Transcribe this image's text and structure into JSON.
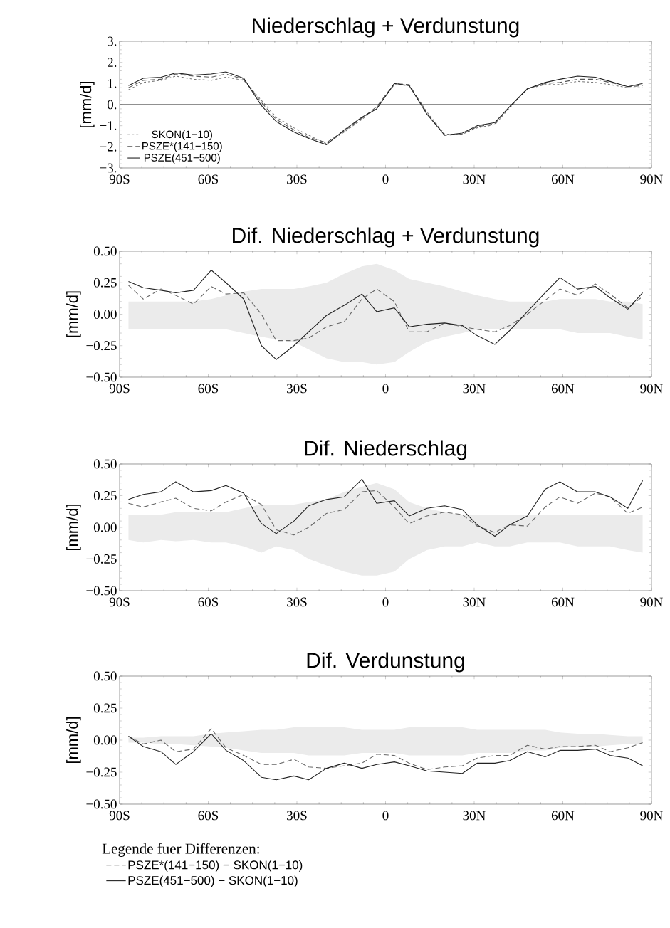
{
  "chart_data": [
    {
      "type": "line",
      "title": "Niederschlag + Verdunstung",
      "ylabel": "[mm/d]",
      "legend": "bottom left",
      "x": [
        -87,
        -82,
        -76,
        -71,
        -65,
        -59,
        -54,
        -48,
        -42,
        -37,
        -31,
        -26,
        -20,
        -14,
        -8,
        -3,
        3,
        8,
        14,
        20,
        26,
        31,
        37,
        42,
        48,
        54,
        59,
        65,
        71,
        76,
        82,
        87
      ],
      "xlim": [
        -90,
        90
      ],
      "xticks": [
        {
          "value": -90,
          "label": "90S"
        },
        {
          "value": -60,
          "label": "60S"
        },
        {
          "value": -30,
          "label": "30S"
        },
        {
          "value": 0,
          "label": "0"
        },
        {
          "value": 30,
          "label": "30N"
        },
        {
          "value": 60,
          "label": "60N"
        },
        {
          "value": 90,
          "label": "90N"
        }
      ],
      "ylim": [
        -3,
        3
      ],
      "yticks": [
        {
          "value": -3,
          "label": "−3."
        },
        {
          "value": -2,
          "label": "−2."
        },
        {
          "value": -1,
          "label": "−1."
        },
        {
          "value": 0,
          "label": "0."
        },
        {
          "value": 1,
          "label": "1."
        },
        {
          "value": 2,
          "label": "2."
        },
        {
          "value": 3,
          "label": "3."
        }
      ],
      "ref_lines": [
        {
          "axis": "y",
          "value": 0,
          "color": "#222222"
        }
      ],
      "series": [
        {
          "name": "SKON(1−10)",
          "color": "#777777",
          "line_style": "dotted",
          "values": [
            0.7,
            1.05,
            1.15,
            1.35,
            1.2,
            1.15,
            1.3,
            1.15,
            0.2,
            -0.6,
            -1.1,
            -1.45,
            -1.85,
            -1.3,
            -0.7,
            -0.15,
            0.95,
            0.9,
            -0.35,
            -1.4,
            -1.4,
            -1.1,
            -0.95,
            -0.15,
            0.75,
            0.95,
            0.95,
            1.1,
            1.05,
            0.95,
            0.8,
            0.8
          ]
        },
        {
          "name": "PSZE*(141−150)",
          "color": "#555555",
          "line_style": "dashed",
          "values": [
            0.8,
            1.15,
            1.2,
            1.45,
            1.35,
            1.3,
            1.45,
            1.2,
            0.1,
            -0.7,
            -1.2,
            -1.55,
            -1.8,
            -1.25,
            -0.65,
            -0.1,
            1.0,
            0.95,
            -0.4,
            -1.45,
            -1.4,
            -1.05,
            -0.9,
            -0.1,
            0.75,
            1.0,
            1.05,
            1.2,
            1.2,
            1.05,
            0.85,
            0.9
          ]
        },
        {
          "name": "PSZE(451−500)",
          "color": "#222222",
          "line_style": "solid",
          "values": [
            0.9,
            1.25,
            1.3,
            1.5,
            1.4,
            1.45,
            1.55,
            1.25,
            -0.05,
            -0.8,
            -1.3,
            -1.6,
            -1.9,
            -1.2,
            -0.6,
            -0.2,
            1.0,
            0.9,
            -0.45,
            -1.45,
            -1.35,
            -1.0,
            -0.85,
            -0.1,
            0.75,
            1.05,
            1.2,
            1.35,
            1.3,
            1.1,
            0.85,
            1.0
          ]
        }
      ]
    },
    {
      "type": "line",
      "title": "Dif. Niederschlag + Verdunstung",
      "ylabel": "[mm/d]",
      "x": [
        -87,
        -82,
        -76,
        -71,
        -65,
        -59,
        -54,
        -48,
        -42,
        -37,
        -31,
        -26,
        -20,
        -14,
        -8,
        -3,
        3,
        8,
        14,
        20,
        26,
        31,
        37,
        42,
        48,
        54,
        59,
        65,
        71,
        76,
        82,
        87
      ],
      "xlim": [
        -90,
        90
      ],
      "xticks": [
        {
          "value": -90,
          "label": "90S"
        },
        {
          "value": -60,
          "label": "60S"
        },
        {
          "value": -30,
          "label": "30S"
        },
        {
          "value": 0,
          "label": "0"
        },
        {
          "value": 30,
          "label": "30N"
        },
        {
          "value": 60,
          "label": "60N"
        },
        {
          "value": 90,
          "label": "90N"
        }
      ],
      "ylim": [
        -0.5,
        0.5
      ],
      "yticks": [
        {
          "value": -0.5,
          "label": "−0.50"
        },
        {
          "value": -0.25,
          "label": "−0.25"
        },
        {
          "value": 0,
          "label": "0.00"
        },
        {
          "value": 0.25,
          "label": "0.25"
        },
        {
          "value": 0.5,
          "label": "0.50"
        }
      ],
      "series": [
        {
          "type": "area",
          "color": "#ebebeb",
          "values": [
            null,
            null,
            null,
            null,
            null,
            null,
            null,
            null,
            null,
            null,
            null,
            null,
            null,
            null,
            null,
            null,
            null,
            null,
            null,
            null,
            null,
            null,
            null,
            null,
            null,
            null,
            null,
            null,
            null,
            null,
            null,
            null
          ],
          "upper": [
            0.1,
            0.1,
            0.1,
            0.1,
            0.1,
            0.12,
            0.15,
            0.18,
            0.2,
            0.2,
            0.2,
            0.22,
            0.25,
            0.32,
            0.38,
            0.4,
            0.35,
            0.28,
            0.25,
            0.22,
            0.18,
            0.15,
            0.12,
            0.1,
            0.1,
            0.1,
            0.12,
            0.12,
            0.12,
            0.1,
            0.1,
            0.08
          ],
          "lower": [
            -0.12,
            -0.12,
            -0.12,
            -0.12,
            -0.12,
            -0.12,
            -0.12,
            -0.15,
            -0.18,
            -0.2,
            -0.22,
            -0.28,
            -0.35,
            -0.38,
            -0.38,
            -0.4,
            -0.38,
            -0.3,
            -0.22,
            -0.18,
            -0.15,
            -0.12,
            -0.12,
            -0.12,
            -0.12,
            -0.12,
            -0.12,
            -0.15,
            -0.15,
            -0.15,
            -0.18,
            -0.2
          ]
        },
        {
          "color": "#666666",
          "line_style": "dashed",
          "values": [
            0.23,
            0.12,
            0.2,
            0.15,
            0.08,
            0.22,
            0.16,
            0.17,
            0.0,
            -0.21,
            -0.21,
            -0.19,
            -0.1,
            -0.06,
            0.12,
            0.2,
            0.1,
            -0.14,
            -0.14,
            -0.07,
            -0.1,
            -0.12,
            -0.14,
            -0.09,
            0.0,
            0.11,
            0.2,
            0.15,
            0.24,
            0.16,
            0.05,
            0.14
          ]
        },
        {
          "color": "#222222",
          "line_style": "solid",
          "values": [
            0.26,
            0.21,
            0.19,
            0.17,
            0.19,
            0.35,
            0.25,
            0.12,
            -0.25,
            -0.36,
            -0.25,
            -0.14,
            -0.01,
            0.07,
            0.16,
            0.02,
            0.05,
            -0.1,
            -0.08,
            -0.07,
            -0.09,
            -0.17,
            -0.24,
            -0.13,
            0.02,
            0.17,
            0.29,
            0.2,
            0.22,
            0.13,
            0.04,
            0.17
          ]
        }
      ]
    },
    {
      "type": "line",
      "title": "Dif. Niederschlag",
      "ylabel": "[mm/d]",
      "x": [
        -87,
        -82,
        -76,
        -71,
        -65,
        -59,
        -54,
        -48,
        -42,
        -37,
        -31,
        -26,
        -20,
        -14,
        -8,
        -3,
        3,
        8,
        14,
        20,
        26,
        31,
        37,
        42,
        48,
        54,
        59,
        65,
        71,
        76,
        82,
        87
      ],
      "xlim": [
        -90,
        90
      ],
      "xticks": [
        {
          "value": -90,
          "label": "90S"
        },
        {
          "value": -60,
          "label": "60S"
        },
        {
          "value": -30,
          "label": "30S"
        },
        {
          "value": 0,
          "label": "0"
        },
        {
          "value": 30,
          "label": "30N"
        },
        {
          "value": 60,
          "label": "60N"
        },
        {
          "value": 90,
          "label": "90N"
        }
      ],
      "ylim": [
        -0.5,
        0.5
      ],
      "yticks": [
        {
          "value": -0.5,
          "label": "−0.50"
        },
        {
          "value": -0.25,
          "label": "−0.25"
        },
        {
          "value": 0,
          "label": "0.00"
        },
        {
          "value": 0.25,
          "label": "0.25"
        },
        {
          "value": 0.5,
          "label": "0.50"
        }
      ],
      "series": [
        {
          "type": "area",
          "color": "#ebebeb",
          "values": [
            null,
            null,
            null,
            null,
            null,
            null,
            null,
            null,
            null,
            null,
            null,
            null,
            null,
            null,
            null,
            null,
            null,
            null,
            null,
            null,
            null,
            null,
            null,
            null,
            null,
            null,
            null,
            null,
            null,
            null,
            null,
            null
          ],
          "upper": [
            0.1,
            0.1,
            0.1,
            0.12,
            0.12,
            0.12,
            0.12,
            0.15,
            0.18,
            0.18,
            0.18,
            0.2,
            0.22,
            0.28,
            0.32,
            0.35,
            0.3,
            0.2,
            0.15,
            0.12,
            0.1,
            0.1,
            0.1,
            0.1,
            0.1,
            0.1,
            0.1,
            0.1,
            0.1,
            0.1,
            0.1,
            0.1
          ],
          "lower": [
            -0.1,
            -0.12,
            -0.1,
            -0.11,
            -0.1,
            -0.12,
            -0.12,
            -0.15,
            -0.2,
            -0.15,
            -0.18,
            -0.25,
            -0.3,
            -0.35,
            -0.38,
            -0.38,
            -0.35,
            -0.25,
            -0.18,
            -0.15,
            -0.15,
            -0.12,
            -0.15,
            -0.15,
            -0.12,
            -0.12,
            -0.12,
            -0.15,
            -0.15,
            -0.15,
            -0.18,
            -0.2
          ]
        },
        {
          "color": "#666666",
          "line_style": "dashed",
          "values": [
            0.19,
            0.16,
            0.2,
            0.23,
            0.15,
            0.13,
            0.2,
            0.26,
            0.18,
            -0.02,
            -0.06,
            0.0,
            0.11,
            0.14,
            0.28,
            0.29,
            0.16,
            0.03,
            0.09,
            0.12,
            0.1,
            0.01,
            -0.04,
            0.02,
            0.01,
            0.16,
            0.24,
            0.19,
            0.27,
            0.24,
            0.11,
            0.16
          ]
        },
        {
          "color": "#222222",
          "line_style": "solid",
          "values": [
            0.22,
            0.26,
            0.28,
            0.36,
            0.28,
            0.29,
            0.33,
            0.27,
            0.03,
            -0.05,
            0.05,
            0.17,
            0.22,
            0.24,
            0.38,
            0.19,
            0.21,
            0.09,
            0.15,
            0.17,
            0.14,
            0.02,
            -0.07,
            0.02,
            0.09,
            0.3,
            0.36,
            0.28,
            0.28,
            0.24,
            0.15,
            0.37
          ]
        }
      ]
    },
    {
      "type": "line",
      "title": "Dif. Verdunstung",
      "ylabel": "[mm/d]",
      "legend": "bottom",
      "legend_title": "Legende fuer Differenzen:",
      "x": [
        -87,
        -82,
        -76,
        -71,
        -65,
        -59,
        -54,
        -48,
        -42,
        -37,
        -31,
        -26,
        -20,
        -14,
        -8,
        -3,
        3,
        8,
        14,
        20,
        26,
        31,
        37,
        42,
        48,
        54,
        59,
        65,
        71,
        76,
        82,
        87
      ],
      "xlim": [
        -90,
        90
      ],
      "xticks": [
        {
          "value": -90,
          "label": "90S"
        },
        {
          "value": -60,
          "label": "60S"
        },
        {
          "value": -30,
          "label": "30S"
        },
        {
          "value": 0,
          "label": "0"
        },
        {
          "value": 30,
          "label": "30N"
        },
        {
          "value": 60,
          "label": "60N"
        },
        {
          "value": 90,
          "label": "90N"
        }
      ],
      "ylim": [
        -0.5,
        0.5
      ],
      "yticks": [
        {
          "value": -0.5,
          "label": "−0.50"
        },
        {
          "value": -0.25,
          "label": "−0.25"
        },
        {
          "value": 0,
          "label": "0.00"
        },
        {
          "value": 0.25,
          "label": "0.25"
        },
        {
          "value": 0.5,
          "label": "0.50"
        }
      ],
      "series": [
        {
          "type": "area",
          "color": "#ebebeb",
          "values": [
            null,
            null,
            null,
            null,
            null,
            null,
            null,
            null,
            null,
            null,
            null,
            null,
            null,
            null,
            null,
            null,
            null,
            null,
            null,
            null,
            null,
            null,
            null,
            null,
            null,
            null,
            null,
            null,
            null,
            null,
            null,
            null
          ],
          "upper": [
            0.02,
            0.02,
            0.03,
            0.03,
            0.03,
            0.05,
            0.06,
            0.07,
            0.08,
            0.08,
            0.1,
            0.1,
            0.1,
            0.1,
            0.08,
            0.08,
            0.08,
            0.1,
            0.1,
            0.1,
            0.1,
            0.08,
            0.08,
            0.08,
            0.08,
            0.08,
            0.06,
            0.05,
            0.05,
            0.04,
            0.03,
            0.03
          ],
          "lower": [
            -0.02,
            -0.02,
            -0.03,
            -0.03,
            -0.04,
            -0.05,
            -0.06,
            -0.08,
            -0.1,
            -0.1,
            -0.1,
            -0.12,
            -0.12,
            -0.12,
            -0.1,
            -0.1,
            -0.1,
            -0.12,
            -0.12,
            -0.12,
            -0.12,
            -0.1,
            -0.1,
            -0.1,
            -0.08,
            -0.08,
            -0.06,
            -0.05,
            -0.05,
            -0.04,
            -0.03,
            -0.03
          ]
        },
        {
          "name": "PSZE*(141−150) − SKON(1−10)",
          "color": "#666666",
          "line_style": "dashed",
          "values": [
            0.03,
            -0.03,
            0.0,
            -0.09,
            -0.07,
            0.09,
            -0.06,
            -0.12,
            -0.19,
            -0.19,
            -0.15,
            -0.21,
            -0.22,
            -0.2,
            -0.18,
            -0.11,
            -0.12,
            -0.18,
            -0.23,
            -0.21,
            -0.2,
            -0.14,
            -0.12,
            -0.12,
            -0.04,
            -0.07,
            -0.05,
            -0.05,
            -0.04,
            -0.09,
            -0.06,
            -0.02
          ]
        },
        {
          "name": "PSZE(451−500) − SKON(1−10)",
          "color": "#222222",
          "line_style": "solid",
          "values": [
            0.03,
            -0.05,
            -0.09,
            -0.19,
            -0.09,
            0.05,
            -0.08,
            -0.16,
            -0.29,
            -0.31,
            -0.28,
            -0.31,
            -0.22,
            -0.18,
            -0.22,
            -0.19,
            -0.17,
            -0.2,
            -0.24,
            -0.25,
            -0.26,
            -0.18,
            -0.18,
            -0.16,
            -0.09,
            -0.13,
            -0.08,
            -0.08,
            -0.07,
            -0.12,
            -0.14,
            -0.2
          ]
        }
      ]
    }
  ]
}
